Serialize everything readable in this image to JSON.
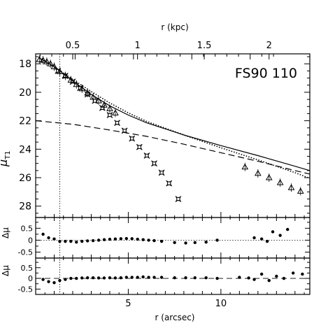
{
  "chart_data": {
    "type": "scatter",
    "title": "FS90  110",
    "main_panel": {
      "xlabel_top": "r (kpc)",
      "ylabel_main": "μ",
      "ylabel_sub": "T1",
      "x_range_arcsec": [
        0,
        14.8
      ],
      "y_range_mag": [
        17.3,
        28.8
      ],
      "y_inverted": true,
      "y_ticks": [
        18,
        20,
        22,
        24,
        26,
        28
      ],
      "top_ticks_kpc": [
        "0.5",
        "1",
        "1.5",
        "2"
      ],
      "top_ticks_arcsec": [
        2.0,
        5.5,
        9.1,
        12.6
      ],
      "psf_line_x": 1.3,
      "series": [
        {
          "marker": "triangles",
          "x": [
            0.2,
            0.4,
            0.6,
            0.8,
            1.0,
            1.3,
            1.6,
            1.9,
            2.2,
            2.5,
            2.8,
            3.1,
            3.4,
            3.7,
            4.0,
            4.3,
            11.3,
            12.0,
            12.6,
            13.2,
            13.8,
            14.3
          ],
          "y": [
            17.7,
            17.75,
            17.85,
            18.0,
            18.2,
            18.55,
            18.85,
            19.15,
            19.45,
            19.75,
            20.05,
            20.35,
            20.6,
            20.9,
            21.15,
            21.45,
            25.25,
            25.7,
            26.0,
            26.35,
            26.7,
            26.95
          ]
        },
        {
          "marker": "four-point stars",
          "x": [
            1.2,
            1.6,
            2.0,
            2.4,
            2.8,
            3.2,
            3.6,
            4.0,
            4.4,
            4.8,
            5.2,
            5.6,
            6.0,
            6.4,
            6.8,
            7.2,
            7.7
          ],
          "y": [
            18.5,
            18.85,
            19.25,
            19.7,
            20.15,
            20.6,
            21.1,
            21.6,
            22.15,
            22.7,
            23.25,
            23.85,
            24.45,
            25.0,
            25.65,
            26.4,
            27.5
          ]
        }
      ],
      "models": [
        {
          "style": "dashed",
          "x": [
            0,
            2,
            4,
            6,
            8,
            10,
            12,
            14,
            14.8
          ],
          "y": [
            22.0,
            22.25,
            22.65,
            23.1,
            23.65,
            24.25,
            24.85,
            25.5,
            25.75
          ]
        },
        {
          "style": "solid",
          "x": [
            0.2,
            1,
            2,
            3,
            4,
            5,
            6,
            8,
            10,
            12,
            14,
            14.8
          ],
          "y": [
            17.6,
            18.2,
            19.2,
            20.15,
            20.95,
            21.6,
            22.15,
            23.0,
            23.75,
            24.45,
            25.2,
            25.5
          ]
        },
        {
          "style": "dotted",
          "x": [
            0.2,
            1,
            2,
            3,
            4,
            5,
            6,
            8,
            10,
            12,
            14,
            14.8
          ],
          "y": [
            17.55,
            18.2,
            19.1,
            19.95,
            20.75,
            21.45,
            22.05,
            23.0,
            23.9,
            24.75,
            25.65,
            26.05
          ]
        }
      ]
    },
    "residual_panels": [
      {
        "ylabel": "Δμ",
        "y_range": [
          -0.75,
          0.95
        ],
        "y_ticks": [
          "0.5",
          "0",
          "-0.5"
        ],
        "zero_line": "dotted",
        "points": {
          "x": [
            0.4,
            0.7,
            1.0,
            1.3,
            1.6,
            1.9,
            2.2,
            2.5,
            2.8,
            3.1,
            3.4,
            3.7,
            4.0,
            4.3,
            4.6,
            4.9,
            5.2,
            5.5,
            5.8,
            6.1,
            6.4,
            6.8,
            7.5,
            8.1,
            8.6,
            9.2,
            9.8,
            11.8,
            12.2,
            12.5,
            12.8,
            13.2,
            13.6
          ],
          "y": [
            0.25,
            0.1,
            0.05,
            -0.05,
            -0.05,
            -0.05,
            -0.08,
            -0.05,
            -0.03,
            -0.02,
            0.0,
            0.02,
            0.04,
            0.05,
            0.06,
            0.07,
            0.06,
            0.04,
            0.02,
            0.0,
            -0.02,
            -0.05,
            -0.1,
            -0.12,
            -0.1,
            -0.08,
            0.0,
            0.1,
            0.05,
            -0.05,
            0.35,
            0.2,
            0.45
          ]
        }
      },
      {
        "ylabel": "Δμ",
        "xlabel": "r (arcsec)",
        "x_ticks": [
          "5",
          "10"
        ],
        "y_range": [
          -0.75,
          0.95
        ],
        "y_ticks": [
          "0.5",
          "0",
          "-0.5"
        ],
        "zero_line": "dashed",
        "points": {
          "x": [
            0.4,
            0.7,
            1.0,
            1.3,
            1.6,
            1.9,
            2.2,
            2.5,
            2.8,
            3.1,
            3.4,
            3.7,
            4.0,
            4.3,
            4.6,
            4.9,
            5.2,
            5.5,
            5.8,
            6.1,
            6.4,
            6.8,
            7.5,
            8.1,
            8.6,
            9.2,
            9.8,
            11.0,
            11.5,
            11.8,
            12.2,
            12.6,
            13.0,
            13.4,
            13.9,
            14.4
          ],
          "y": [
            -0.05,
            -0.15,
            -0.2,
            -0.1,
            -0.05,
            0.0,
            0.0,
            0.02,
            0.03,
            0.03,
            0.02,
            0.02,
            0.03,
            0.02,
            0.03,
            0.05,
            0.05,
            0.05,
            0.07,
            0.05,
            0.05,
            0.05,
            0.03,
            0.03,
            0.03,
            0.03,
            0.0,
            0.05,
            0.02,
            -0.05,
            0.2,
            -0.1,
            0.1,
            0.0,
            0.25,
            0.2
          ]
        }
      }
    ]
  }
}
